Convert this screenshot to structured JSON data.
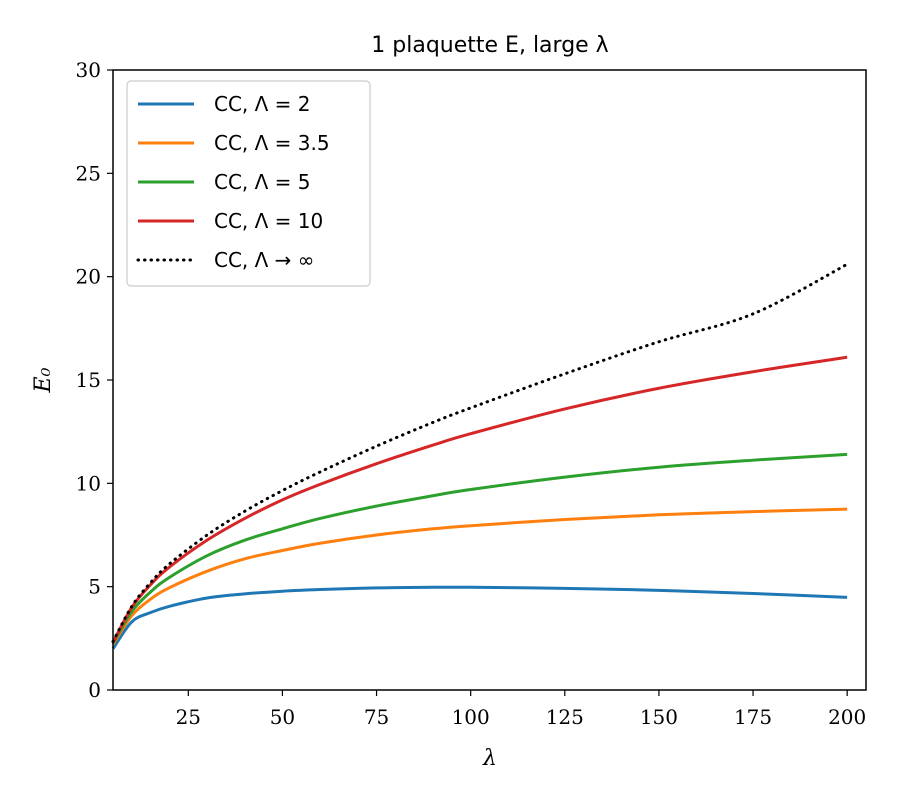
{
  "chart_data": {
    "type": "line",
    "title": "1 plaquette E, large λ",
    "xlabel": "λ",
    "ylabel": "E₀",
    "xlim": [
      5,
      205
    ],
    "ylim": [
      0,
      30
    ],
    "xticks": [
      25,
      50,
      75,
      100,
      125,
      150,
      175,
      200
    ],
    "yticks": [
      0,
      5,
      10,
      15,
      20,
      25,
      30
    ],
    "x": [
      5,
      10,
      15,
      20,
      30,
      40,
      50,
      60,
      75,
      90,
      100,
      125,
      150,
      175,
      200
    ],
    "series": [
      {
        "name": "CC, Λ = 2",
        "color": "#1f77b4",
        "style": "solid",
        "values": [
          2.0,
          3.3,
          3.75,
          4.05,
          4.45,
          4.65,
          4.78,
          4.86,
          4.94,
          4.97,
          4.97,
          4.92,
          4.82,
          4.67,
          4.48
        ]
      },
      {
        "name": "CC, Λ = 3.5",
        "color": "#ff7f0e",
        "style": "solid",
        "values": [
          2.2,
          3.6,
          4.4,
          4.95,
          5.75,
          6.35,
          6.75,
          7.1,
          7.5,
          7.8,
          7.95,
          8.25,
          8.48,
          8.63,
          8.75
        ]
      },
      {
        "name": "CC, Λ = 5",
        "color": "#2ca02c",
        "style": "solid",
        "values": [
          2.25,
          3.8,
          4.75,
          5.45,
          6.5,
          7.25,
          7.8,
          8.3,
          8.9,
          9.4,
          9.7,
          10.3,
          10.78,
          11.12,
          11.4
        ]
      },
      {
        "name": "CC, Λ = 10",
        "color": "#d62728",
        "style": "solid",
        "values": [
          2.3,
          4.0,
          5.1,
          5.95,
          7.25,
          8.3,
          9.2,
          9.95,
          10.95,
          11.85,
          12.4,
          13.6,
          14.6,
          15.4,
          16.1
        ]
      },
      {
        "name": "CC, Λ → ∞",
        "color": "#000000",
        "style": "dotted",
        "values": [
          2.35,
          4.05,
          5.2,
          6.1,
          7.5,
          8.65,
          9.65,
          10.55,
          11.8,
          12.95,
          13.65,
          15.3,
          16.85,
          18.2,
          20.6
        ]
      }
    ]
  }
}
